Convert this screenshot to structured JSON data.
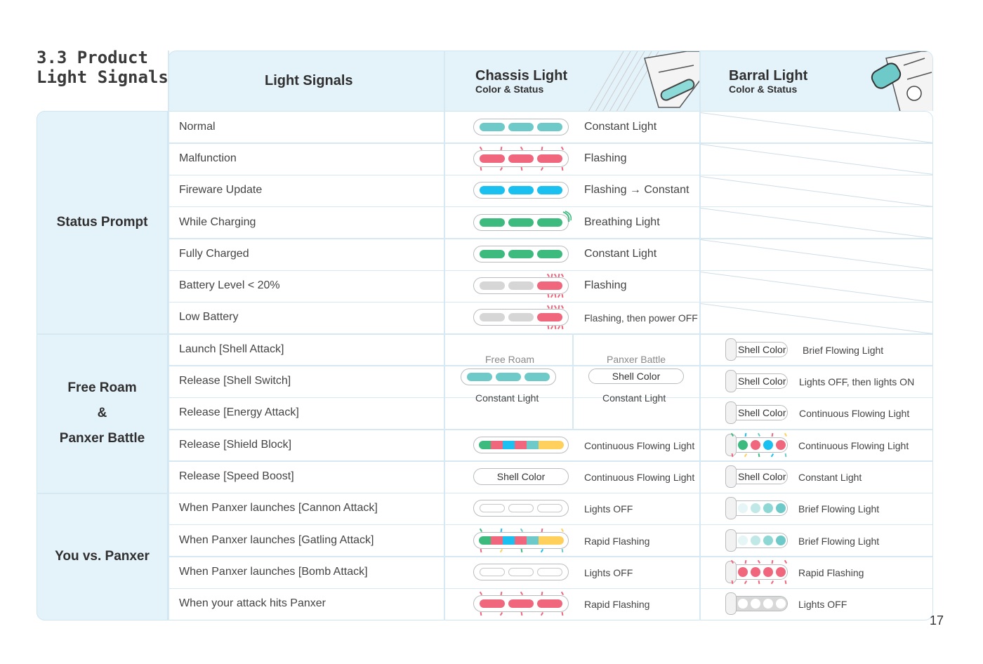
{
  "title": {
    "line1": "3.3 Product",
    "line2": "Light Signals"
  },
  "header": {
    "signals": "Light Signals",
    "chassis_title": "Chassis Light",
    "chassis_sub": "Color & Status",
    "barral_title": "Barral Light",
    "barral_sub": "Color & Status"
  },
  "groups": {
    "status": "Status Prompt",
    "free_l1": "Free Roam",
    "free_l2": "&",
    "free_l3": "Panxer Battle",
    "you": "You vs. Panxer"
  },
  "rows": [
    {
      "signal": "Normal",
      "chassis": "Constant Light"
    },
    {
      "signal": "Malfunction",
      "chassis": "Flashing"
    },
    {
      "signal": "Fireware Update",
      "chassis": "Flashing → Constant"
    },
    {
      "signal": "While Charging",
      "chassis": "Breathing Light"
    },
    {
      "signal": "Fully Charged",
      "chassis": "Constant Light"
    },
    {
      "signal": "Battery Level < 20%",
      "chassis": "Flashing"
    },
    {
      "signal": "Low Battery",
      "chassis": "Flashing, then power OFF"
    },
    {
      "signal": "Launch [Shell Attack]",
      "barral": "Brief Flowing Light",
      "barral_pill": "Shell Color"
    },
    {
      "signal": "Release [Shell Switch]",
      "barral": "Lights OFF, then lights ON",
      "barral_pill": "Shell Color"
    },
    {
      "signal": "Release [Energy Attack]",
      "barral": "Continuous Flowing Light",
      "barral_pill": "Shell Color"
    },
    {
      "signal": "Release [Shield Block]",
      "chassis": "Continuous Flowing Light",
      "barral": "Continuous Flowing Light"
    },
    {
      "signal": "Release [Speed Boost]",
      "chassis": "Continuous Flowing Light",
      "chassis_pill": "Shell Color",
      "barral": "Constant Light",
      "barral_pill": "Shell Color"
    },
    {
      "signal": "When Panxer launches [Cannon Attack]",
      "chassis": "Lights OFF",
      "barral": "Brief Flowing Light"
    },
    {
      "signal": "When Panxer launches [Gatling Attack]",
      "chassis": "Rapid Flashing",
      "barral": "Brief Flowing Light"
    },
    {
      "signal": "When Panxer launches [Bomb Attack]",
      "chassis": "Lights OFF",
      "barral": "Rapid Flashing"
    },
    {
      "signal": "When your attack hits Panxer",
      "chassis": "Rapid Flashing",
      "barral": "Lights OFF"
    }
  ],
  "merged": {
    "free_roam": "Free Roam",
    "free_roam_status": "Constant Light",
    "panxer_battle": "Panxer Battle",
    "panxer_battle_pill": "Shell Color",
    "panxer_battle_status": "Constant Light"
  },
  "colors": {
    "teal": "#6ecac8",
    "red": "#f0667c",
    "blue": "#19c0f0",
    "green": "#3dbb7e",
    "grey": "#d6d6d6",
    "yellow": "#ffd15c"
  },
  "page_number": "17"
}
